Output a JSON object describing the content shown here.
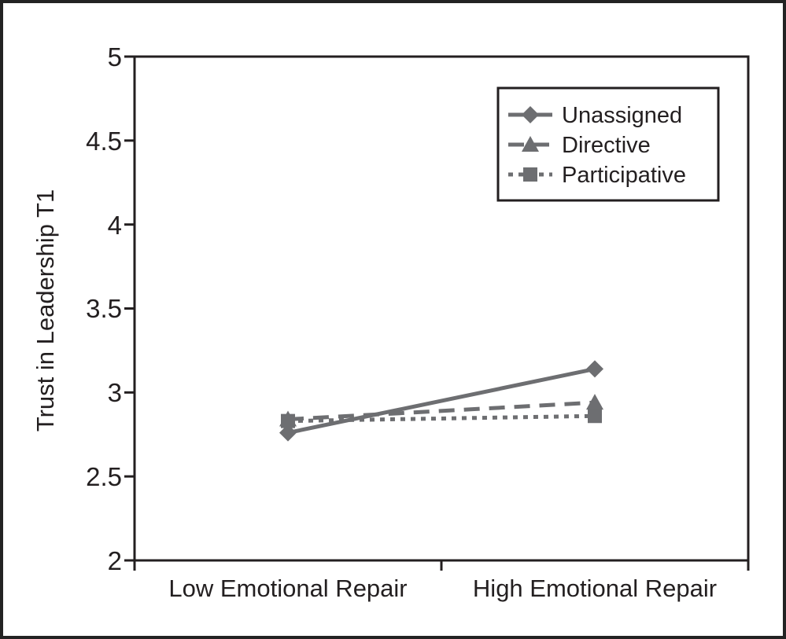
{
  "page": {
    "background": "#ffffff",
    "frame_color": "#232323"
  },
  "chart_data": {
    "type": "line",
    "title": "",
    "xlabel": "",
    "ylabel": "Trust in Leadership T1",
    "categories": [
      "Low Emotional Repair",
      "High Emotional Repair"
    ],
    "series": [
      {
        "name": "Unassigned",
        "marker": "diamond",
        "line_style": "solid",
        "values": [
          2.76,
          3.14
        ]
      },
      {
        "name": "Directive",
        "marker": "triangle",
        "line_style": "dashed",
        "values": [
          2.84,
          2.94
        ]
      },
      {
        "name": "Participative",
        "marker": "square",
        "line_style": "dotted",
        "values": [
          2.83,
          2.86
        ]
      }
    ],
    "ylim": [
      2,
      5
    ],
    "yticks": [
      5,
      4.5,
      4,
      3.5,
      3,
      2.5,
      2
    ],
    "grid": false,
    "legend_position": "top-right",
    "line_color": "#6d6e71",
    "axis_color": "#231f20",
    "text_color": "#231f20"
  }
}
